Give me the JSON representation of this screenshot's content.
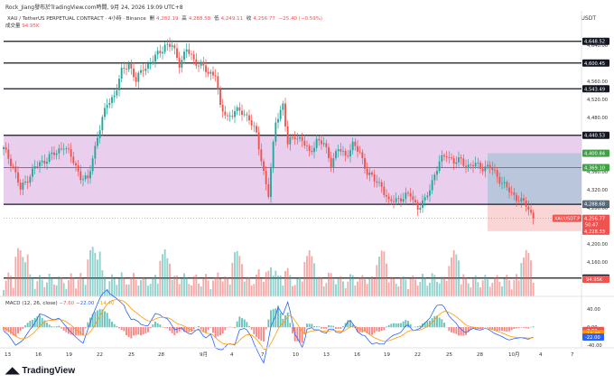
{
  "header": {
    "top_line": "Rock_Jiang發布於TradingView.com時間, 9月 24, 2026 19:09 UTC+8",
    "currency": "USDT",
    "title_prefix": "XAU / TetherUS PERPETUAL CONTRACT · 4小時 · Binance",
    "ohlc": {
      "open_label": "開",
      "open": "4,282.19",
      "high_label": "高",
      "high": "4,288.58",
      "low_label": "低",
      "low": "4,249.11",
      "close_label": "收",
      "close": "4,256.77",
      "change": "−25.40 (−0.59%)"
    },
    "volume_label": "成交量",
    "volume_value": "94.95K",
    "macd_label": "MACD (12, 26, close)",
    "macd_values": [
      "−7.60",
      "−22.00",
      "−14.40"
    ]
  },
  "footer": {
    "logo_text": "TradingView"
  },
  "colors": {
    "up": "#26a69a",
    "down": "#ef5350",
    "range_band": "#e1bee7",
    "target_zone": "#b0c4d8",
    "stop_zone": "#f8d0d0",
    "macd_line": "#2962ff",
    "signal_line": "#ff9800"
  },
  "chart_data": {
    "type": "candlestick",
    "symbol": "XAU / TetherUS PERPETUAL CONTRACT",
    "interval": "4小時",
    "exchange": "Binance",
    "y_ticks": [
      4160,
      4200,
      4240,
      4280,
      4320,
      4360,
      4400,
      4440,
      4480,
      4520,
      4560,
      4600,
      4640
    ],
    "x_ticks": [
      "13",
      "16",
      "19",
      "22",
      "25",
      "28",
      "9月",
      "4",
      "7",
      "10",
      "13",
      "16",
      "19",
      "22",
      "25",
      "28",
      "10月",
      "4",
      "7"
    ],
    "horizontal_levels": [
      "4,648.52",
      "4,600.45",
      "4,543.49",
      "4,440.53",
      "4,369.10",
      "4,287.74",
      "4,124.56"
    ],
    "range_band": {
      "top": 4440.53,
      "bottom": 4287.74
    },
    "position": {
      "entry": 4288.68,
      "target": 4400.84,
      "stop": 4228.33,
      "entry_label": "4,288.68",
      "target_label": "4,400.84",
      "stop_label": "4,228.33"
    },
    "last_price": {
      "symbol_tag": "XAUUSDT.P",
      "price": "4,256.77",
      "countdown": "50:47"
    },
    "close_path": [
      [
        0,
        4410
      ],
      [
        4,
        4372
      ],
      [
        7,
        4320
      ],
      [
        10,
        4345
      ],
      [
        13,
        4370
      ],
      [
        16,
        4380
      ],
      [
        19,
        4395
      ],
      [
        22,
        4400
      ],
      [
        25,
        4420
      ],
      [
        28,
        4392
      ],
      [
        32,
        4350
      ],
      [
        35,
        4340
      ],
      [
        39,
        4440
      ],
      [
        43,
        4510
      ],
      [
        46,
        4530
      ],
      [
        49,
        4580
      ],
      [
        52,
        4600
      ],
      [
        55,
        4560
      ],
      [
        58,
        4590
      ],
      [
        61,
        4600
      ],
      [
        64,
        4620
      ],
      [
        67,
        4640
      ],
      [
        70,
        4638
      ],
      [
        73,
        4600
      ],
      [
        76,
        4630
      ],
      [
        79,
        4606
      ],
      [
        82,
        4598
      ],
      [
        85,
        4575
      ],
      [
        88,
        4580
      ],
      [
        90,
        4500
      ],
      [
        93,
        4480
      ],
      [
        96,
        4495
      ],
      [
        99,
        4490
      ],
      [
        102,
        4480
      ],
      [
        105,
        4440
      ],
      [
        108,
        4360
      ],
      [
        110,
        4310
      ],
      [
        113,
        4470
      ],
      [
        116,
        4510
      ],
      [
        118,
        4420
      ],
      [
        121,
        4440
      ],
      [
        124,
        4430
      ],
      [
        127,
        4400
      ],
      [
        130,
        4430
      ],
      [
        133,
        4420
      ],
      [
        136,
        4380
      ],
      [
        139,
        4410
      ],
      [
        142,
        4395
      ],
      [
        145,
        4420
      ],
      [
        148,
        4400
      ],
      [
        151,
        4360
      ],
      [
        154,
        4340
      ],
      [
        157,
        4330
      ],
      [
        160,
        4290
      ],
      [
        163,
        4300
      ],
      [
        166,
        4302
      ],
      [
        169,
        4310
      ],
      [
        172,
        4280
      ],
      [
        175,
        4295
      ],
      [
        178,
        4340
      ],
      [
        181,
        4380
      ],
      [
        184,
        4400
      ],
      [
        187,
        4380
      ],
      [
        190,
        4385
      ],
      [
        193,
        4372
      ],
      [
        196,
        4375
      ],
      [
        199,
        4370
      ],
      [
        202,
        4370
      ],
      [
        205,
        4350
      ],
      [
        208,
        4330
      ],
      [
        211,
        4310
      ],
      [
        214,
        4300
      ],
      [
        217,
        4285
      ],
      [
        220,
        4256.77
      ]
    ],
    "volume_axis": {
      "label": "94.95K"
    },
    "macd": {
      "ticks": [
        40,
        0,
        -40
      ],
      "values": {
        "histogram": -7.6,
        "macd": -22.0,
        "signal": -14.4
      }
    }
  }
}
